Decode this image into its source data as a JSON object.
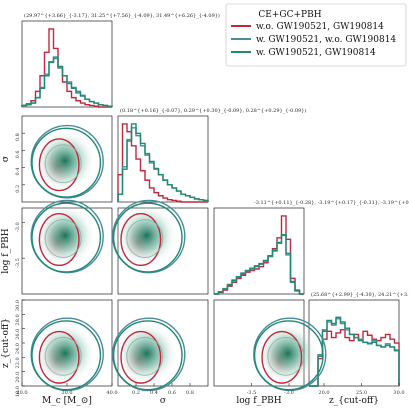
{
  "chart_data": {
    "type": "corner",
    "legend": {
      "title": "CE+GC+PBH",
      "placement": "top-right",
      "entries": [
        {
          "label": "w.o. GW190521, GW190814",
          "color": "#c0283c"
        },
        {
          "label": "w. GW190521, w.o. GW190814",
          "color": "#4a8aa0"
        },
        {
          "label": "w. GW190521, GW190814",
          "color": "#1f8a70"
        }
      ]
    },
    "parameters": [
      {
        "name": "Mc",
        "xlabel": "M_c [M_⊙]",
        "range": [
          20,
          40
        ],
        "ticks": [
          "20.0",
          "30.0",
          "40.0"
        ],
        "tick_values": [
          20,
          30,
          40
        ],
        "summary": "(29.97^{+3.66}_{-3.17}, 31.25^{+7.56}_{-4.09}, 31.49^{+6.26}_{-4.09})",
        "hist": {
          "red": [
            0.02,
            0.04,
            0.08,
            0.2,
            0.4,
            0.7,
            1.0,
            0.75,
            0.5,
            0.32,
            0.2,
            0.12,
            0.08,
            0.05,
            0.03,
            0.02,
            0.01,
            0.0,
            0.0,
            0.0
          ],
          "blue": [
            0.02,
            0.03,
            0.05,
            0.12,
            0.25,
            0.42,
            0.58,
            0.62,
            0.5,
            0.4,
            0.32,
            0.25,
            0.2,
            0.15,
            0.1,
            0.07,
            0.05,
            0.03,
            0.02,
            0.01
          ],
          "green": [
            0.02,
            0.03,
            0.05,
            0.12,
            0.24,
            0.4,
            0.57,
            0.64,
            0.52,
            0.4,
            0.3,
            0.24,
            0.18,
            0.14,
            0.1,
            0.07,
            0.05,
            0.03,
            0.02,
            0.01
          ]
        }
      },
      {
        "name": "sigma",
        "xlabel": "σ",
        "range": [
          0,
          1
        ],
        "ticks": [
          "0.2",
          "0.4",
          "0.6",
          "0.8"
        ],
        "tick_values": [
          0.2,
          0.4,
          0.6,
          0.8
        ],
        "summary": "(0.18^{+0.16}_{-0.07}, 0.29^{+0.30}_{-0.09}, 0.28^{+0.29}_{-0.09})",
        "hist": {
          "red": [
            0.35,
            1.0,
            0.9,
            0.72,
            0.55,
            0.4,
            0.28,
            0.18,
            0.12,
            0.08,
            0.05,
            0.03,
            0.02,
            0.01,
            0.0,
            0.0,
            0.0,
            0.0,
            0.0,
            0.0
          ],
          "blue": [
            0.1,
            0.45,
            0.8,
            0.95,
            0.85,
            0.72,
            0.6,
            0.5,
            0.42,
            0.35,
            0.28,
            0.22,
            0.18,
            0.14,
            0.1,
            0.08,
            0.06,
            0.04,
            0.03,
            0.02
          ],
          "green": [
            0.1,
            0.42,
            0.78,
            1.0,
            0.88,
            0.75,
            0.62,
            0.52,
            0.43,
            0.35,
            0.28,
            0.22,
            0.18,
            0.14,
            0.1,
            0.08,
            0.06,
            0.04,
            0.03,
            0.02
          ]
        }
      },
      {
        "name": "logfPBH",
        "xlabel": "log f_PBH",
        "range": [
          -4,
          -2.8
        ],
        "ticks": [
          "-3.5",
          "-3.0"
        ],
        "tick_values": [
          -3.5,
          -3.0
        ],
        "summary": "-3.11^{+0.11}_{-0.28}, -3.19^{+0.17}_{-0.31}, -3.19^{+0.16}_{-0.33}",
        "hist": {
          "red": [
            0.0,
            0.02,
            0.05,
            0.1,
            0.15,
            0.2,
            0.24,
            0.28,
            0.3,
            0.32,
            0.35,
            0.4,
            0.48,
            0.58,
            0.72,
            1.0,
            0.7,
            0.2,
            0.05,
            0.0
          ],
          "blue": [
            0.0,
            0.03,
            0.07,
            0.12,
            0.18,
            0.22,
            0.27,
            0.3,
            0.32,
            0.35,
            0.38,
            0.42,
            0.48,
            0.55,
            0.65,
            0.75,
            0.5,
            0.15,
            0.04,
            0.0
          ],
          "green": [
            0.0,
            0.03,
            0.06,
            0.12,
            0.17,
            0.22,
            0.26,
            0.3,
            0.33,
            0.36,
            0.39,
            0.43,
            0.49,
            0.56,
            0.66,
            0.76,
            0.52,
            0.16,
            0.04,
            0.0
          ]
        }
      },
      {
        "name": "zcut",
        "xlabel": "z_{cut-off}",
        "range": [
          18,
          30
        ],
        "ticks": [
          "20.0",
          "25.0",
          "30.0"
        ],
        "tick_values": [
          20,
          25,
          30
        ],
        "y_ticks": [
          "18.0",
          "20.0",
          "22.0",
          "24.0",
          "26.0",
          "28.0",
          "30.0"
        ],
        "y_tick_values": [
          18,
          20,
          22,
          24,
          26,
          28,
          30
        ],
        "summary": "(25.68^{+2.99}_{-4.30}, 24.21^{+3.37}_{-2.90}, 24.62^{+3.58}_{-3.35})",
        "hist": {
          "red": [
            0.0,
            0.0,
            0.35,
            0.6,
            0.7,
            0.62,
            0.68,
            0.72,
            0.62,
            0.58,
            0.66,
            0.6,
            0.7,
            0.65,
            0.6,
            0.58,
            0.62,
            0.66,
            0.6,
            0.55
          ],
          "blue": [
            0.0,
            0.0,
            0.4,
            0.72,
            0.82,
            0.78,
            0.86,
            0.8,
            0.72,
            0.66,
            0.62,
            0.6,
            0.56,
            0.55,
            0.58,
            0.52,
            0.5,
            0.54,
            0.5,
            0.45
          ],
          "green": [
            0.0,
            0.0,
            0.38,
            0.7,
            0.84,
            0.8,
            0.88,
            0.82,
            0.74,
            0.66,
            0.62,
            0.58,
            0.56,
            0.54,
            0.56,
            0.52,
            0.5,
            0.52,
            0.5,
            0.46
          ]
        }
      }
    ],
    "y_ticks_rows": {
      "sigma": [
        "0.2",
        "0.4",
        "0.6",
        "0.8"
      ],
      "logfPBH": [
        "-3.5",
        "-3.0"
      ]
    }
  }
}
